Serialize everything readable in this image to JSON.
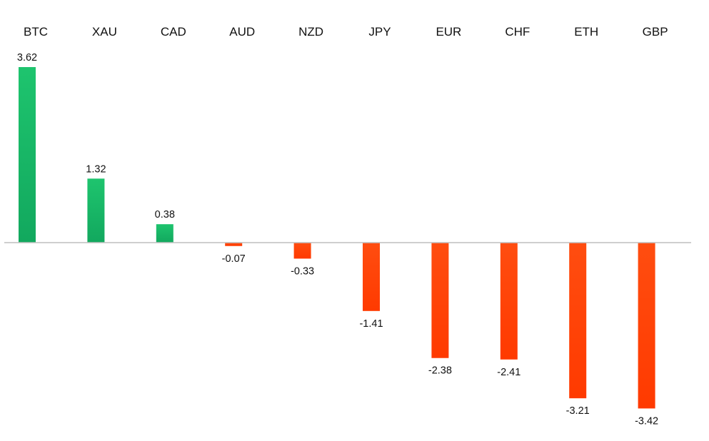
{
  "chart_data": {
    "type": "bar",
    "title": "",
    "xlabel": "",
    "ylabel": "",
    "categories": [
      "BTC",
      "XAU",
      "CAD",
      "AUD",
      "NZD",
      "JPY",
      "EUR",
      "CHF",
      "ETH",
      "GBP"
    ],
    "values": [
      3.62,
      1.32,
      0.38,
      -0.07,
      -0.33,
      -1.41,
      -2.38,
      -2.41,
      -3.21,
      -3.42
    ],
    "value_labels": [
      "3.62",
      "1.32",
      "0.38",
      "-0.07",
      "-0.33",
      "-1.41",
      "-2.38",
      "-2.41",
      "-3.21",
      "-3.42"
    ],
    "ylim": [
      -3.42,
      3.62
    ],
    "grid": false,
    "legend": "none",
    "category_label_position": "top",
    "colors": {
      "positive_top": "#1ec46e",
      "positive_bottom": "#12a85e",
      "negative_top": "#ff4d10",
      "negative_bottom": "#ff3a00",
      "axis": "#bfbfbf",
      "text": "#111111"
    }
  }
}
